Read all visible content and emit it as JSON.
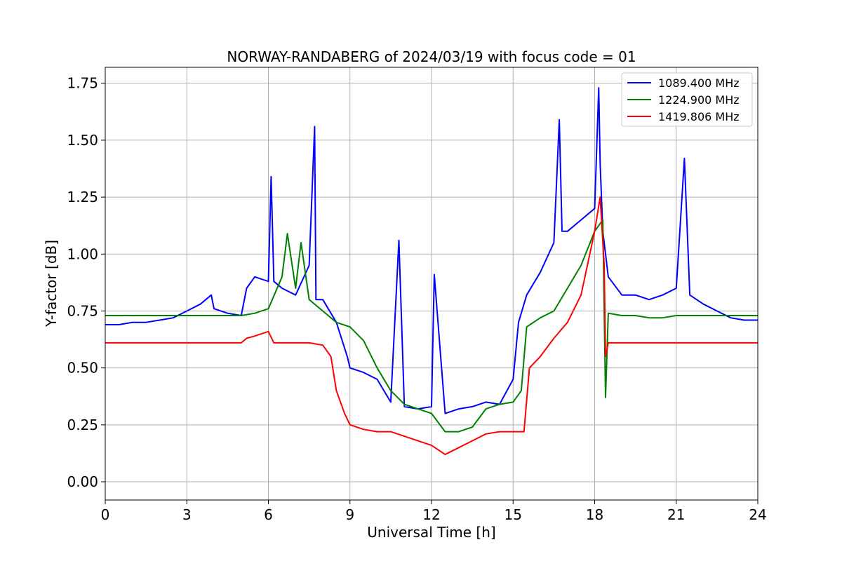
{
  "chart_data": {
    "type": "line",
    "title": "NORWAY-RANDABERG of 2024/03/19 with focus code = 01",
    "xlabel": "Universal Time [h]",
    "ylabel": "Y-factor [dB]",
    "xlim": [
      0,
      24
    ],
    "ylim": [
      -0.08,
      1.82
    ],
    "xticks": [
      0,
      3,
      6,
      9,
      12,
      15,
      18,
      21,
      24
    ],
    "yticks": [
      0.0,
      0.25,
      0.5,
      0.75,
      1.0,
      1.25,
      1.5,
      1.75
    ],
    "xtick_labels": [
      "0",
      "3",
      "6",
      "9",
      "12",
      "15",
      "18",
      "21",
      "24"
    ],
    "ytick_labels": [
      "0.00",
      "0.25",
      "0.50",
      "0.75",
      "1.00",
      "1.25",
      "1.50",
      "1.75"
    ],
    "grid": true,
    "legend_position": "top-right",
    "series": [
      {
        "name": "1089.400 MHz",
        "color": "#0000ff",
        "x": [
          0,
          0.5,
          1.0,
          1.5,
          2.0,
          2.5,
          3.0,
          3.5,
          3.9,
          4.0,
          4.5,
          5.0,
          5.2,
          5.5,
          6.0,
          6.1,
          6.2,
          6.5,
          7.0,
          7.5,
          7.7,
          7.75,
          8.0,
          8.5,
          8.9,
          9.0,
          9.5,
          10.0,
          10.5,
          10.8,
          11.0,
          11.5,
          12.0,
          12.1,
          12.5,
          13.0,
          13.5,
          14.0,
          14.5,
          15.0,
          15.2,
          15.5,
          16.0,
          16.5,
          16.7,
          16.8,
          17.0,
          17.5,
          18.0,
          18.15,
          18.2,
          18.3,
          18.5,
          19.0,
          19.5,
          20.0,
          20.5,
          21.0,
          21.3,
          21.5,
          22.0,
          22.5,
          23.0,
          23.5,
          24.0
        ],
        "y": [
          0.69,
          0.69,
          0.7,
          0.7,
          0.71,
          0.72,
          0.75,
          0.78,
          0.82,
          0.76,
          0.74,
          0.73,
          0.85,
          0.9,
          0.88,
          1.34,
          0.88,
          0.85,
          0.82,
          0.95,
          1.56,
          0.8,
          0.8,
          0.7,
          0.55,
          0.5,
          0.48,
          0.45,
          0.35,
          1.06,
          0.33,
          0.32,
          0.33,
          0.91,
          0.3,
          0.32,
          0.33,
          0.35,
          0.34,
          0.45,
          0.7,
          0.82,
          0.92,
          1.05,
          1.59,
          1.1,
          1.1,
          1.15,
          1.2,
          1.73,
          1.4,
          1.1,
          0.9,
          0.82,
          0.82,
          0.8,
          0.82,
          0.85,
          1.42,
          0.82,
          0.78,
          0.75,
          0.72,
          0.71,
          0.71
        ]
      },
      {
        "name": "1224.900 MHz",
        "color": "#008000",
        "x": [
          0,
          0.5,
          1.0,
          1.5,
          2.0,
          2.5,
          3.0,
          3.5,
          4.0,
          4.5,
          5.0,
          5.5,
          6.0,
          6.5,
          6.7,
          7.0,
          7.2,
          7.5,
          8.0,
          8.5,
          9.0,
          9.5,
          10.0,
          10.5,
          11.0,
          11.5,
          12.0,
          12.5,
          13.0,
          13.5,
          14.0,
          14.5,
          15.0,
          15.3,
          15.5,
          16.0,
          16.5,
          17.0,
          17.5,
          18.0,
          18.3,
          18.4,
          18.5,
          19.0,
          19.5,
          20.0,
          20.5,
          21.0,
          21.5,
          22.0,
          22.5,
          23.0,
          23.5,
          24.0
        ],
        "y": [
          0.73,
          0.73,
          0.73,
          0.73,
          0.73,
          0.73,
          0.73,
          0.73,
          0.73,
          0.73,
          0.73,
          0.74,
          0.76,
          0.9,
          1.09,
          0.85,
          1.05,
          0.8,
          0.75,
          0.7,
          0.68,
          0.62,
          0.5,
          0.4,
          0.34,
          0.32,
          0.3,
          0.22,
          0.22,
          0.24,
          0.32,
          0.34,
          0.35,
          0.4,
          0.68,
          0.72,
          0.75,
          0.85,
          0.95,
          1.1,
          1.15,
          0.37,
          0.74,
          0.73,
          0.73,
          0.72,
          0.72,
          0.73,
          0.73,
          0.73,
          0.73,
          0.73,
          0.73,
          0.73
        ]
      },
      {
        "name": "1419.806 MHz",
        "color": "#ff0000",
        "x": [
          0,
          0.5,
          1.0,
          1.5,
          2.0,
          2.5,
          3.0,
          3.5,
          4.0,
          4.5,
          5.0,
          5.2,
          5.5,
          6.0,
          6.2,
          6.5,
          7.0,
          7.5,
          8.0,
          8.3,
          8.5,
          8.8,
          9.0,
          9.5,
          10.0,
          10.5,
          11.0,
          11.5,
          12.0,
          12.5,
          13.0,
          13.5,
          14.0,
          14.5,
          15.0,
          15.4,
          15.6,
          16.0,
          16.5,
          17.0,
          17.5,
          18.0,
          18.2,
          18.35,
          18.4,
          18.5,
          19.0,
          19.5,
          20.0,
          20.5,
          21.0,
          21.5,
          22.0,
          22.5,
          23.0,
          23.5,
          24.0
        ],
        "y": [
          0.61,
          0.61,
          0.61,
          0.61,
          0.61,
          0.61,
          0.61,
          0.61,
          0.61,
          0.61,
          0.61,
          0.63,
          0.64,
          0.66,
          0.61,
          0.61,
          0.61,
          0.61,
          0.6,
          0.55,
          0.4,
          0.3,
          0.25,
          0.23,
          0.22,
          0.22,
          0.2,
          0.18,
          0.16,
          0.12,
          0.15,
          0.18,
          0.21,
          0.22,
          0.22,
          0.22,
          0.5,
          0.55,
          0.63,
          0.7,
          0.82,
          1.1,
          1.25,
          0.95,
          0.55,
          0.61,
          0.61,
          0.61,
          0.61,
          0.61,
          0.61,
          0.61,
          0.61,
          0.61,
          0.61,
          0.61,
          0.61
        ]
      }
    ]
  }
}
